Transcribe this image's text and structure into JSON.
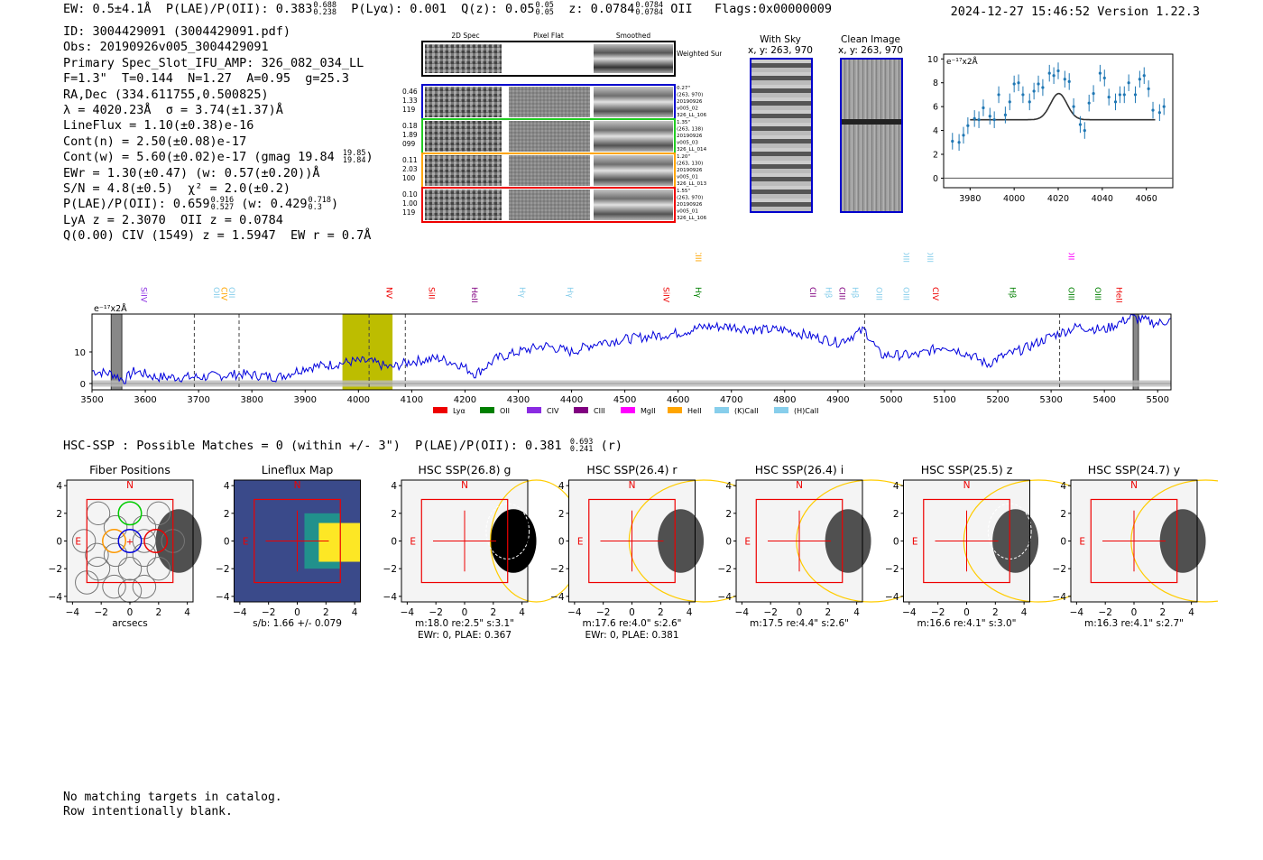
{
  "header": {
    "ew": "EW: 0.5±4.1Å",
    "plae_label": "P(LAE)/P(OII): 0.383",
    "plae_hi": "0.688",
    "plae_lo": "0.238",
    "plya": "P(Lyα): 0.001",
    "qz": "Q(z): 0.05",
    "qz_hi": "0.05",
    "qz_lo": "0.05",
    "z": "z: 0.0784",
    "z_hi": "0.0784",
    "z_lo": "0.0784",
    "z_line": "OII",
    "flags": "Flags:0x00000009",
    "datetime": "2024-12-27 15:46:52",
    "version": "Version 1.22.3"
  },
  "info": {
    "id": "ID: 3004429091 (3004429091.pdf)",
    "obs": "Obs: 20190926v005_3004429091",
    "primary": "Primary Spec_Slot_IFU_AMP: 326_082_034_LL",
    "params": "F=1.3\"  T=0.144  N=1.27  A=0.95  g=25.3",
    "radec": "RA,Dec (334.611755,0.500825)",
    "lambda": "λ = 4020.23Å  σ = 3.74(±1.37)Å",
    "lineflux": "LineFlux = 1.10(±0.38)e-16",
    "contn": "Cont(n) = 2.50(±0.08)e-17",
    "contw": "Cont(w) = 5.60(±0.02)e-17 (gmag 19.84",
    "contw_hi": "19.85",
    "contw_lo": "19.84",
    "ewr": "EWr = 1.30(±0.47) (w: 0.57(±0.20))Å",
    "sn": "S/N = 4.8(±0.5)  χ² = 2.0(±0.2)",
    "plae": "P(LAE)/P(OII): 0.659",
    "plae_hi": "0.916",
    "plae_lo": "0.527",
    "plae_w": "(w: 0.429",
    "plae_w_hi": "0.718",
    "plae_w_lo": "0.3",
    "lya": "LyA z = 2.3070  OII z = 0.0784",
    "civ": "Q(0.00) CIV (1549) z = 1.5947  EW r = 0.7Å"
  },
  "spec2d": {
    "col_labels": [
      "2D Spec",
      "Pixel Flat",
      "Smoothed"
    ],
    "weighted_label": "Weighted Sum",
    "rows": [
      {
        "color": "#0000cc",
        "left": [
          "0.46",
          "1.33",
          "119"
        ],
        "right": [
          "0.27\"",
          "(263, 970)",
          "20190926",
          "v005_02",
          "326_LL_106"
        ]
      },
      {
        "color": "#22cc22",
        "left": [
          "0.18",
          "1.89",
          "099"
        ],
        "right": [
          "1.35\"",
          "(263, 138)",
          "20190926",
          "v005_03",
          "326_LL_014"
        ]
      },
      {
        "color": "#ffa500",
        "left": [
          "0.11",
          "2.03",
          "100"
        ],
        "right": [
          "1.20\"",
          "(263, 130)",
          "20190926",
          "v005_01",
          "326_LL_013"
        ]
      },
      {
        "color": "#ee0000",
        "left": [
          "0.10",
          "1.00",
          "119"
        ],
        "right": [
          "1.55\"",
          "(263, 970)",
          "20190926",
          "v005_01",
          "326_LL_106"
        ]
      }
    ]
  },
  "cutouts": {
    "with_sky": {
      "title": "With Sky",
      "coords": "x, y: 263, 970"
    },
    "clean": {
      "title": "Clean Image",
      "coords": "x, y: 263, 970"
    }
  },
  "chart_data": [
    {
      "type": "scatter",
      "title": "",
      "ylabel": "e⁻¹⁷x2Å",
      "x_ticks": [
        3980,
        4000,
        4020,
        4040,
        4060
      ],
      "y_ticks": [
        0,
        2,
        4,
        6,
        8,
        10
      ],
      "xlim": [
        3968,
        4072
      ],
      "ylim": [
        -0.8,
        10.4
      ],
      "points": [
        [
          3972,
          3.1
        ],
        [
          3975,
          3.0
        ],
        [
          3977,
          3.6
        ],
        [
          3979,
          4.4
        ],
        [
          3982,
          5.0
        ],
        [
          3984,
          4.9
        ],
        [
          3986,
          5.9
        ],
        [
          3989,
          5.2
        ],
        [
          3991,
          4.9
        ],
        [
          3993,
          7.0
        ],
        [
          3996,
          5.3
        ],
        [
          3998,
          6.4
        ],
        [
          4000,
          7.9
        ],
        [
          4002,
          8.0
        ],
        [
          4004,
          7.0
        ],
        [
          4007,
          6.4
        ],
        [
          4009,
          7.3
        ],
        [
          4011,
          7.9
        ],
        [
          4013,
          7.6
        ],
        [
          4016,
          8.8
        ],
        [
          4018,
          8.6
        ],
        [
          4020,
          9.0
        ],
        [
          4023,
          8.3
        ],
        [
          4025,
          8.1
        ],
        [
          4027,
          6.0
        ],
        [
          4030,
          4.5
        ],
        [
          4032,
          4.0
        ],
        [
          4034,
          6.3
        ],
        [
          4036,
          7.1
        ],
        [
          4039,
          8.8
        ],
        [
          4041,
          8.4
        ],
        [
          4043,
          6.8
        ],
        [
          4046,
          6.4
        ],
        [
          4048,
          7.0
        ],
        [
          4050,
          7.0
        ],
        [
          4052,
          8.0
        ],
        [
          4055,
          7.0
        ],
        [
          4057,
          8.3
        ],
        [
          4059,
          8.6
        ],
        [
          4061,
          7.5
        ],
        [
          4063,
          5.7
        ],
        [
          4066,
          5.5
        ],
        [
          4068,
          6.0
        ]
      ],
      "fit": {
        "continuum": 4.9,
        "center": 4020.23,
        "sigma": 3.74,
        "peak": 2.2
      }
    },
    {
      "type": "line",
      "ylabel": "e⁻¹⁷x2Å",
      "x_ticks": [
        3500,
        3600,
        3700,
        3800,
        3900,
        4000,
        4100,
        4200,
        4300,
        4400,
        4500,
        4600,
        4700,
        4800,
        4900,
        5000,
        5100,
        5200,
        5300,
        5400,
        5500
      ],
      "y_ticks": [
        0,
        10
      ],
      "xlim": [
        3500,
        5525
      ],
      "ylim": [
        -2,
        22
      ],
      "highlight_range": [
        3970,
        4064
      ],
      "emission_marker": 4020,
      "dashed_lines": [
        3692,
        3776,
        4088,
        4950,
        5316
      ],
      "masked_bands": [
        [
          3536,
          3556
        ],
        [
          5454,
          5464
        ]
      ],
      "series": {
        "name": "spectrum",
        "anchors": [
          [
            3500,
            4
          ],
          [
            3540,
            3
          ],
          [
            3560,
            1
          ],
          [
            3580,
            4
          ],
          [
            3620,
            2
          ],
          [
            3700,
            2
          ],
          [
            3780,
            3
          ],
          [
            3850,
            2
          ],
          [
            3900,
            5
          ],
          [
            3950,
            6
          ],
          [
            3990,
            7
          ],
          [
            4020,
            7
          ],
          [
            4060,
            5
          ],
          [
            4100,
            7
          ],
          [
            4150,
            8
          ],
          [
            4190,
            6
          ],
          [
            4220,
            3
          ],
          [
            4260,
            8
          ],
          [
            4300,
            10
          ],
          [
            4350,
            12
          ],
          [
            4400,
            10
          ],
          [
            4450,
            13
          ],
          [
            4500,
            14
          ],
          [
            4550,
            15
          ],
          [
            4600,
            16
          ],
          [
            4650,
            18
          ],
          [
            4700,
            18
          ],
          [
            4750,
            17
          ],
          [
            4800,
            17
          ],
          [
            4850,
            15
          ],
          [
            4900,
            13
          ],
          [
            4950,
            17
          ],
          [
            4980,
            9
          ],
          [
            5050,
            9
          ],
          [
            5100,
            12
          ],
          [
            5150,
            9
          ],
          [
            5180,
            6
          ],
          [
            5200,
            8
          ],
          [
            5250,
            11
          ],
          [
            5300,
            15
          ],
          [
            5350,
            18
          ],
          [
            5400,
            17
          ],
          [
            5450,
            21
          ],
          [
            5500,
            19
          ],
          [
            5520,
            20
          ]
        ]
      },
      "legend": [
        {
          "label": "Lyα",
          "color": "#ee0000"
        },
        {
          "label": "OII",
          "color": "#008000"
        },
        {
          "label": "CIV",
          "color": "#8a2be2"
        },
        {
          "label": "CIII",
          "color": "#800080"
        },
        {
          "label": "MgII",
          "color": "#ff00ff"
        },
        {
          "label": "HeII",
          "color": "#ffa500"
        },
        {
          "label": "(K)CaII",
          "color": "#87ceeb"
        },
        {
          "label": "(H)CaII",
          "color": "#87ceeb"
        }
      ],
      "line_labels": [
        {
          "label": "SiIV",
          "wave": 3640,
          "color": "#8a2be2",
          "tier": 0
        },
        {
          "label": "OII",
          "wave": 3776,
          "color": "#87ceeb",
          "tier": 0
        },
        {
          "label": "CIV",
          "wave": 3790,
          "color": "#ffa500",
          "tier": 0
        },
        {
          "label": "OII",
          "wave": 3805,
          "color": "#87ceeb",
          "tier": 0
        },
        {
          "label": "NV",
          "wave": 4100,
          "color": "#ee0000",
          "tier": 0
        },
        {
          "label": "SiII",
          "wave": 4180,
          "color": "#ee0000",
          "tier": 0
        },
        {
          "label": "HeII",
          "wave": 4260,
          "color": "#800080",
          "tier": 0
        },
        {
          "label": "Hγ",
          "wave": 4350,
          "color": "#87ceeb",
          "tier": 0
        },
        {
          "label": "Hγ",
          "wave": 4440,
          "color": "#87ceeb",
          "tier": 0
        },
        {
          "label": "SiIV",
          "wave": 4620,
          "color": "#ee0000",
          "tier": 0
        },
        {
          "label": "Hγ",
          "wave": 4680,
          "color": "#008000",
          "tier": 0
        },
        {
          "label": "CIII",
          "wave": 4680,
          "color": "#ffa500",
          "tier": 1
        },
        {
          "label": "CII",
          "wave": 4895,
          "color": "#800080",
          "tier": 0
        },
        {
          "label": "Hβ",
          "wave": 4925,
          "color": "#87ceeb",
          "tier": 0
        },
        {
          "label": "CIII",
          "wave": 4950,
          "color": "#800080",
          "tier": 0
        },
        {
          "label": "Hβ",
          "wave": 4975,
          "color": "#87ceeb",
          "tier": 0
        },
        {
          "label": "OIII",
          "wave": 5020,
          "color": "#87ceeb",
          "tier": 0
        },
        {
          "label": "OIII",
          "wave": 5070,
          "color": "#87ceeb",
          "tier": 0
        },
        {
          "label": "OIII",
          "wave": 5070,
          "color": "#87ceeb",
          "tier": 1
        },
        {
          "label": "CIV",
          "wave": 5125,
          "color": "#ee0000",
          "tier": 0
        },
        {
          "label": "OIII",
          "wave": 5115,
          "color": "#87ceeb",
          "tier": 1
        },
        {
          "label": "Hβ",
          "wave": 5270,
          "color": "#008000",
          "tier": 0
        },
        {
          "label": "OIII",
          "wave": 5380,
          "color": "#008000",
          "tier": 0
        },
        {
          "label": "OIII",
          "wave": 5430,
          "color": "#008000",
          "tier": 0
        },
        {
          "label": "OII",
          "wave": 5380,
          "color": "#ff00ff",
          "tier": 1
        },
        {
          "label": "HeII",
          "wave": 5470,
          "color": "#ee0000",
          "tier": 0
        }
      ]
    }
  ],
  "hsc": {
    "title": "HSC-SSP : Possible Matches = 0 (within +/- 3\")  P(LAE)/P(OII): 0.381",
    "title_hi": "0.693",
    "title_lo": "0.241",
    "title_band": "(r)",
    "panels": [
      {
        "title": "Fiber Positions",
        "caption1": "arcsecs",
        "caption2": ""
      },
      {
        "title": "Lineflux Map",
        "caption1": "s/b: 1.66 +/- 0.079",
        "caption2": ""
      },
      {
        "title": "HSC SSP(26.8) g",
        "caption1": "m:18.0  re:2.5\"  s:3.1\"",
        "caption2": "EWr: 0, PLAE: 0.367"
      },
      {
        "title": "HSC SSP(26.4) r",
        "caption1": "m:17.6  re:4.0\"  s:2.6\"",
        "caption2": "EWr: 0, PLAE: 0.381"
      },
      {
        "title": "HSC SSP(26.4) i",
        "caption1": "m:17.5  re:4.4\"  s:2.6\"",
        "caption2": ""
      },
      {
        "title": "HSC SSP(25.5) z",
        "caption1": "m:16.6  re:4.1\"  s:3.0\"",
        "caption2": ""
      },
      {
        "title": "HSC SSP(24.7) y",
        "caption1": "m:16.3  re:4.1\"  s:2.7\"",
        "caption2": ""
      }
    ],
    "axis_ticks": [
      "4",
      "2",
      "0",
      "−2",
      "−4"
    ],
    "x_ticks": [
      "−4",
      "−2",
      "0",
      "2",
      "4"
    ],
    "north": "N",
    "east": "E"
  },
  "notes": {
    "line1": "No matching targets in catalog.",
    "line2": "Row intentionally blank."
  }
}
